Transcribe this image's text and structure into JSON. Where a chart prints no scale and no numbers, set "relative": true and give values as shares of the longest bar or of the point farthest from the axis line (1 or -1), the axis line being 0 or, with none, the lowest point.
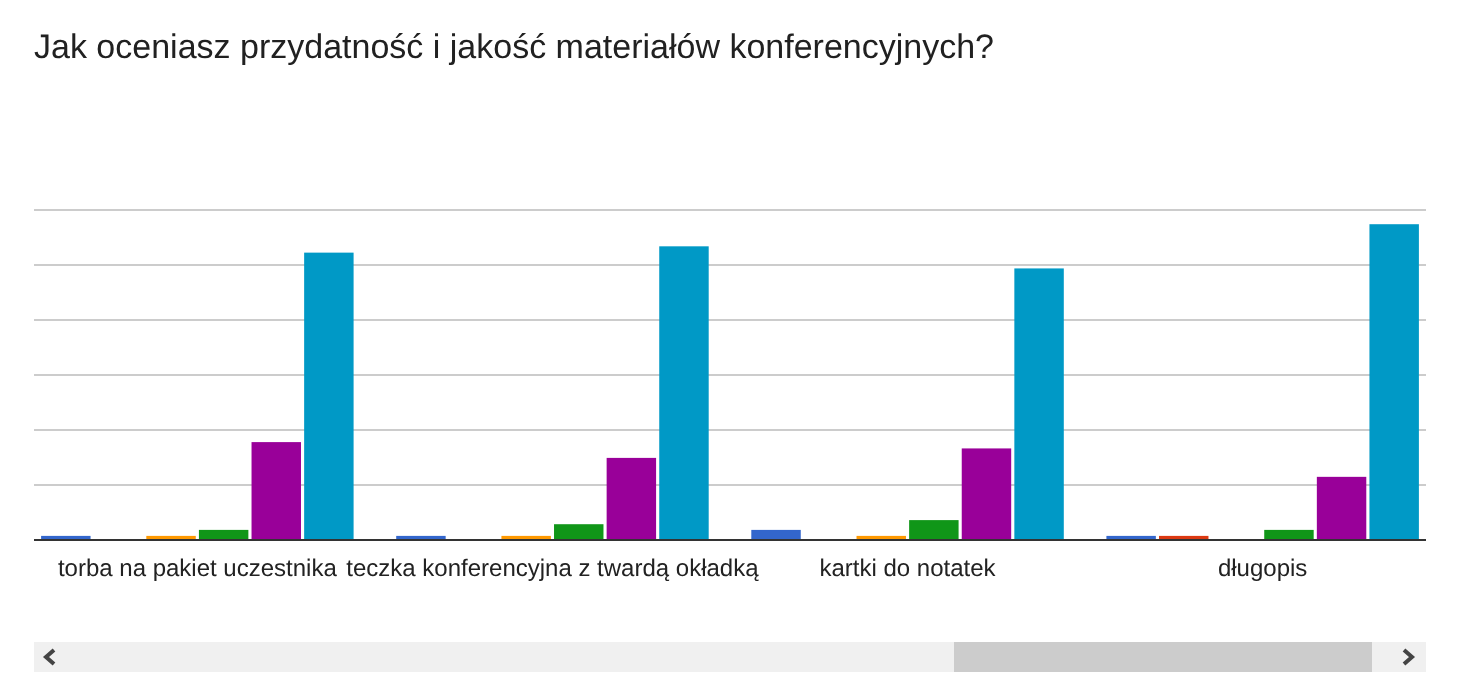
{
  "chart_data": {
    "type": "bar",
    "title": "Jak oceniasz przydatność i jakość materiałów konferencyjnych?",
    "categories": [
      "torba na pakiet uczestnika",
      "teczka konferencyjna z twardą okładką",
      "kartki do notatek",
      "długopis"
    ],
    "relative": true,
    "grid": true,
    "series": [
      {
        "color": "#3366cc",
        "values": [
          0.013,
          0.013,
          0.032,
          0.013
        ]
      },
      {
        "color": "#dc3912",
        "values": [
          0,
          0,
          0,
          0.013
        ]
      },
      {
        "color": "#ff9900",
        "values": [
          0.013,
          0.013,
          0.013,
          0
        ]
      },
      {
        "color": "#109618",
        "values": [
          0.032,
          0.05,
          0.063,
          0.032
        ]
      },
      {
        "color": "#990099",
        "values": [
          0.31,
          0.26,
          0.29,
          0.2
        ]
      },
      {
        "color": "#0099c6",
        "values": [
          0.91,
          0.93,
          0.86,
          1
        ]
      }
    ]
  }
}
